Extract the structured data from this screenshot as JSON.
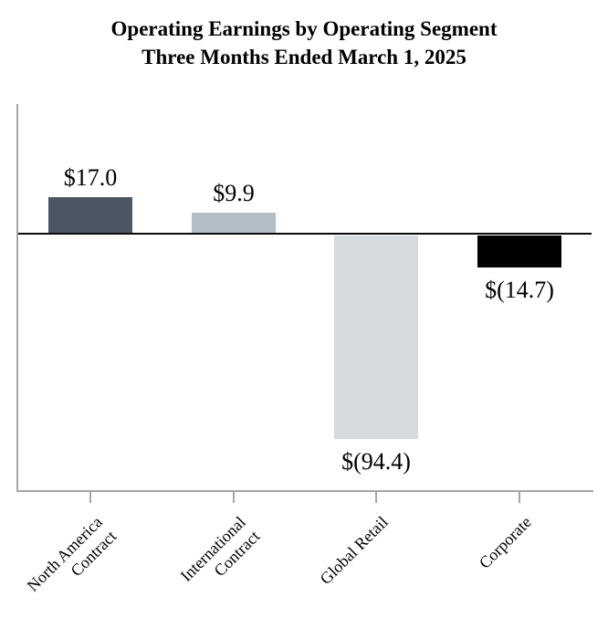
{
  "chart_data": {
    "type": "bar",
    "title": "Operating Earnings by Operating Segment",
    "subtitle": "Three Months Ended March 1, 2025",
    "categories": [
      "North America Contract",
      "International Contract",
      "Global Retail",
      "Corporate"
    ],
    "category_lines": [
      [
        "North America",
        "Contract"
      ],
      [
        "International",
        "Contract"
      ],
      [
        "Global Retail"
      ],
      [
        "Corporate"
      ]
    ],
    "values": [
      17.0,
      9.9,
      -94.4,
      -14.7
    ],
    "value_labels": [
      "$17.0",
      "$9.9",
      "$(94.4)",
      "$(14.7)"
    ],
    "bar_colors": [
      "#4d5663",
      "#b3bdc7",
      "#d4dadd",
      "#000000"
    ],
    "xlabel": "",
    "ylabel": "",
    "ylim": [
      -120,
      60
    ],
    "baseline": 0,
    "grid": false,
    "legend": false,
    "axis_color": "#a6a6a6",
    "baseline_color": "#0a0a0a",
    "text_color": "#000000",
    "negative_format": "parentheses"
  }
}
